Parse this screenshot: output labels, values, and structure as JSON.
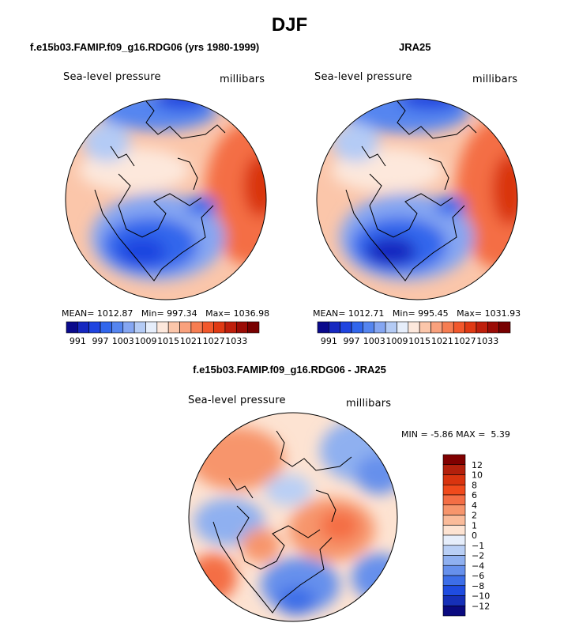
{
  "title": "DJF",
  "panels": [
    {
      "title": "f.e15b03.FAMIP.f09_g16.RDG06 (yrs 1980-1999)",
      "variable": "Sea-level pressure",
      "units": "millibars",
      "stats": {
        "mean_label": "MEAN=",
        "mean": "1012.87",
        "min_label": "Min=",
        "min": "997.34",
        "max_label": "Max=",
        "max": "1036.98"
      }
    },
    {
      "title": "JRA25",
      "variable": "Sea-level pressure",
      "units": "millibars",
      "stats": {
        "mean_label": "MEAN=",
        "mean": "1012.71",
        "min_label": "Min=",
        "min": "995.45",
        "max_label": "Max=",
        "max": "1031.93"
      }
    },
    {
      "title": "f.e15b03.FAMIP.f09_g16.RDG06 - JRA25",
      "variable": "Sea-level pressure",
      "units": "millibars",
      "stats": {
        "min_label": "MIN =",
        "min": "-5.86",
        "max_label": "MAX =",
        "max": "5.39"
      }
    }
  ],
  "colorbar_top": {
    "labels": [
      "991",
      "997",
      "1003",
      "1009",
      "1015",
      "1021",
      "1027",
      "1033"
    ],
    "colors": [
      "#0a0a8c",
      "#1628c0",
      "#1f44e0",
      "#3166ec",
      "#5585f0",
      "#85a6f2",
      "#b4cbf5",
      "#e6eefb",
      "#fde8dc",
      "#fbc6aa",
      "#f9a17d",
      "#f67d52",
      "#f2582c",
      "#e03a14",
      "#bf1f0c",
      "#9b0c06",
      "#780000"
    ]
  },
  "colorbar_diff": {
    "labels": [
      "12",
      "10",
      "8",
      "6",
      "4",
      "2",
      "1",
      "0",
      "−1",
      "−2",
      "−4",
      "−6",
      "−8",
      "−10",
      "−12"
    ],
    "colors": [
      "#800000",
      "#b3200c",
      "#d9340f",
      "#f04a1c",
      "#f46e45",
      "#f7956c",
      "#fabb9a",
      "#fde3d2",
      "#e6eefb",
      "#b9cff5",
      "#8fb0f0",
      "#6690ec",
      "#3d6ee8",
      "#1f4ce0",
      "#1630b8",
      "#0a0a80"
    ]
  }
}
